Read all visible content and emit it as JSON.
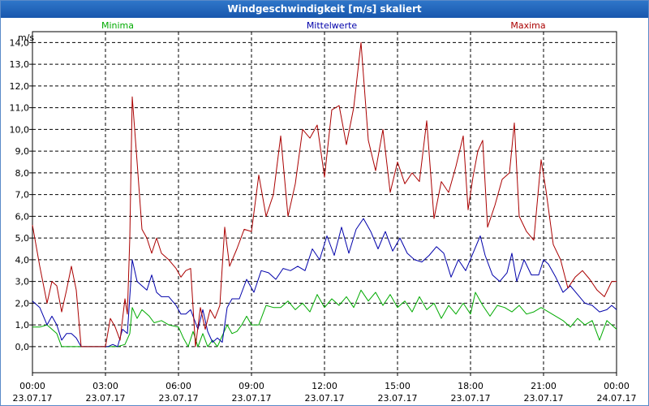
{
  "window": {
    "title": "Windgeschwindigkeit [m/s] skaliert"
  },
  "chart_data": {
    "type": "line",
    "title": "Windgeschwindigkeit [m/s] skaliert",
    "ylabel": "m/s",
    "ylim": [
      -1.2,
      14.5
    ],
    "xlim": [
      0,
      24
    ],
    "y_ticks": [
      0,
      1,
      2,
      3,
      4,
      5,
      6,
      7,
      8,
      9,
      10,
      11,
      12,
      13,
      14
    ],
    "y_tick_labels": [
      "0,0",
      "1,0",
      "2,0",
      "3,0",
      "4,0",
      "5,0",
      "6,0",
      "7,0",
      "8,0",
      "9,0",
      "10,0",
      "11,0",
      "12,0",
      "13,0",
      "14,0"
    ],
    "x_ticks": [
      {
        "hour": 0,
        "time": "00:00",
        "date": "23.07.17"
      },
      {
        "hour": 3,
        "time": "03:00",
        "date": "23.07.17"
      },
      {
        "hour": 6,
        "time": "06:00",
        "date": "23.07.17"
      },
      {
        "hour": 9,
        "time": "09:00",
        "date": "23.07.17"
      },
      {
        "hour": 12,
        "time": "12:00",
        "date": "23.07.17"
      },
      {
        "hour": 15,
        "time": "15:00",
        "date": "23.07.17"
      },
      {
        "hour": 18,
        "time": "18:00",
        "date": "23.07.17"
      },
      {
        "hour": 21,
        "time": "21:00",
        "date": "23.07.17"
      },
      {
        "hour": 24,
        "time": "00:00",
        "date": "24.07.17"
      }
    ],
    "series": [
      {
        "name": "Minima",
        "color": "#00aa00",
        "legend_position": "top-left",
        "points": [
          [
            0,
            0.9
          ],
          [
            0.3,
            0.9
          ],
          [
            0.6,
            1.0
          ],
          [
            1.0,
            0.6
          ],
          [
            1.2,
            0.0
          ],
          [
            1.6,
            0.0
          ],
          [
            2.0,
            0.0
          ],
          [
            2.4,
            0.0
          ],
          [
            2.8,
            0.0
          ],
          [
            3.2,
            0.0
          ],
          [
            3.5,
            0.0
          ],
          [
            3.8,
            0.1
          ],
          [
            4.0,
            0.6
          ],
          [
            4.1,
            1.8
          ],
          [
            4.3,
            1.3
          ],
          [
            4.5,
            1.7
          ],
          [
            4.8,
            1.4
          ],
          [
            5.0,
            1.1
          ],
          [
            5.3,
            1.2
          ],
          [
            5.6,
            1.0
          ],
          [
            6.0,
            0.9
          ],
          [
            6.2,
            0.4
          ],
          [
            6.4,
            0.0
          ],
          [
            6.6,
            0.7
          ],
          [
            6.8,
            0.0
          ],
          [
            7.0,
            0.6
          ],
          [
            7.2,
            0.0
          ],
          [
            7.4,
            0.3
          ],
          [
            7.6,
            0.0
          ],
          [
            7.8,
            0.5
          ],
          [
            8.0,
            1.0
          ],
          [
            8.2,
            0.6
          ],
          [
            8.4,
            0.7
          ],
          [
            8.6,
            1.0
          ],
          [
            8.8,
            1.4
          ],
          [
            9.0,
            1.0
          ],
          [
            9.3,
            1.0
          ],
          [
            9.6,
            1.9
          ],
          [
            9.9,
            1.8
          ],
          [
            10.2,
            1.8
          ],
          [
            10.5,
            2.1
          ],
          [
            10.8,
            1.7
          ],
          [
            11.1,
            2.0
          ],
          [
            11.4,
            1.6
          ],
          [
            11.7,
            2.4
          ],
          [
            12.0,
            1.8
          ],
          [
            12.3,
            2.2
          ],
          [
            12.6,
            1.9
          ],
          [
            12.9,
            2.3
          ],
          [
            13.2,
            1.8
          ],
          [
            13.5,
            2.6
          ],
          [
            13.8,
            2.1
          ],
          [
            14.1,
            2.5
          ],
          [
            14.4,
            1.9
          ],
          [
            14.7,
            2.4
          ],
          [
            15.0,
            1.8
          ],
          [
            15.3,
            2.1
          ],
          [
            15.6,
            1.6
          ],
          [
            15.9,
            2.3
          ],
          [
            16.2,
            1.7
          ],
          [
            16.5,
            2.0
          ],
          [
            16.8,
            1.3
          ],
          [
            17.1,
            1.9
          ],
          [
            17.4,
            1.5
          ],
          [
            17.7,
            2.0
          ],
          [
            18.0,
            1.5
          ],
          [
            18.2,
            2.5
          ],
          [
            18.5,
            1.9
          ],
          [
            18.8,
            1.4
          ],
          [
            19.1,
            1.9
          ],
          [
            19.4,
            1.8
          ],
          [
            19.7,
            1.6
          ],
          [
            20.0,
            1.9
          ],
          [
            20.3,
            1.5
          ],
          [
            20.6,
            1.6
          ],
          [
            20.9,
            1.8
          ],
          [
            21.2,
            1.6
          ],
          [
            21.5,
            1.4
          ],
          [
            21.8,
            1.2
          ],
          [
            22.1,
            0.9
          ],
          [
            22.4,
            1.3
          ],
          [
            22.7,
            1.0
          ],
          [
            23.0,
            1.2
          ],
          [
            23.3,
            0.3
          ],
          [
            23.6,
            1.2
          ],
          [
            24.0,
            0.8
          ]
        ]
      },
      {
        "name": "Mittelwerte",
        "color": "#0000aa",
        "legend_position": "top-center",
        "points": [
          [
            0,
            2.1
          ],
          [
            0.3,
            1.8
          ],
          [
            0.6,
            1.0
          ],
          [
            0.8,
            1.4
          ],
          [
            1.0,
            1.0
          ],
          [
            1.2,
            0.3
          ],
          [
            1.4,
            0.6
          ],
          [
            1.6,
            0.6
          ],
          [
            1.8,
            0.4
          ],
          [
            2.0,
            0.0
          ],
          [
            2.4,
            0.0
          ],
          [
            2.8,
            0.0
          ],
          [
            3.1,
            0.0
          ],
          [
            3.3,
            0.1
          ],
          [
            3.5,
            0.0
          ],
          [
            3.7,
            0.8
          ],
          [
            3.9,
            0.6
          ],
          [
            4.1,
            4.0
          ],
          [
            4.3,
            3.0
          ],
          [
            4.5,
            2.8
          ],
          [
            4.7,
            2.6
          ],
          [
            4.9,
            3.3
          ],
          [
            5.1,
            2.5
          ],
          [
            5.3,
            2.3
          ],
          [
            5.6,
            2.3
          ],
          [
            5.9,
            1.9
          ],
          [
            6.1,
            1.5
          ],
          [
            6.3,
            1.5
          ],
          [
            6.5,
            1.7
          ],
          [
            6.8,
            0.8
          ],
          [
            7.0,
            1.7
          ],
          [
            7.2,
            0.7
          ],
          [
            7.4,
            0.2
          ],
          [
            7.6,
            0.4
          ],
          [
            7.8,
            0.2
          ],
          [
            8.0,
            1.8
          ],
          [
            8.2,
            2.2
          ],
          [
            8.5,
            2.2
          ],
          [
            8.8,
            3.1
          ],
          [
            9.1,
            2.5
          ],
          [
            9.4,
            3.5
          ],
          [
            9.7,
            3.4
          ],
          [
            10.0,
            3.1
          ],
          [
            10.3,
            3.6
          ],
          [
            10.6,
            3.5
          ],
          [
            10.9,
            3.7
          ],
          [
            11.2,
            3.5
          ],
          [
            11.5,
            4.5
          ],
          [
            11.8,
            4.0
          ],
          [
            12.1,
            5.1
          ],
          [
            12.4,
            4.2
          ],
          [
            12.7,
            5.5
          ],
          [
            13.0,
            4.3
          ],
          [
            13.3,
            5.4
          ],
          [
            13.6,
            5.9
          ],
          [
            13.9,
            5.3
          ],
          [
            14.2,
            4.5
          ],
          [
            14.5,
            5.3
          ],
          [
            14.8,
            4.4
          ],
          [
            15.1,
            5.0
          ],
          [
            15.4,
            4.3
          ],
          [
            15.7,
            4.0
          ],
          [
            16.0,
            3.9
          ],
          [
            16.3,
            4.2
          ],
          [
            16.6,
            4.6
          ],
          [
            16.9,
            4.3
          ],
          [
            17.2,
            3.2
          ],
          [
            17.5,
            4.0
          ],
          [
            17.8,
            3.5
          ],
          [
            18.1,
            4.3
          ],
          [
            18.4,
            5.1
          ],
          [
            18.6,
            4.2
          ],
          [
            18.9,
            3.3
          ],
          [
            19.2,
            3.0
          ],
          [
            19.5,
            3.4
          ],
          [
            19.7,
            4.3
          ],
          [
            19.9,
            3.0
          ],
          [
            20.2,
            4.0
          ],
          [
            20.5,
            3.3
          ],
          [
            20.8,
            3.3
          ],
          [
            21.0,
            4.0
          ],
          [
            21.2,
            3.8
          ],
          [
            21.5,
            3.2
          ],
          [
            21.8,
            2.5
          ],
          [
            22.1,
            2.8
          ],
          [
            22.4,
            2.4
          ],
          [
            22.7,
            2.0
          ],
          [
            23.0,
            1.9
          ],
          [
            23.3,
            1.6
          ],
          [
            23.6,
            1.7
          ],
          [
            23.8,
            1.9
          ],
          [
            24.0,
            1.7
          ]
        ]
      },
      {
        "name": "Maxima",
        "color": "#aa0000",
        "legend_position": "top-right",
        "points": [
          [
            0,
            5.6
          ],
          [
            0.3,
            3.7
          ],
          [
            0.6,
            2.0
          ],
          [
            0.8,
            3.0
          ],
          [
            1.0,
            2.8
          ],
          [
            1.2,
            1.6
          ],
          [
            1.4,
            2.6
          ],
          [
            1.6,
            3.7
          ],
          [
            1.8,
            2.6
          ],
          [
            2.0,
            0.0
          ],
          [
            2.4,
            0.0
          ],
          [
            2.8,
            0.0
          ],
          [
            3.0,
            0.0
          ],
          [
            3.2,
            1.3
          ],
          [
            3.4,
            0.9
          ],
          [
            3.6,
            0.3
          ],
          [
            3.8,
            2.2
          ],
          [
            3.9,
            1.5
          ],
          [
            4.0,
            5.0
          ],
          [
            4.1,
            11.5
          ],
          [
            4.3,
            8.5
          ],
          [
            4.5,
            5.4
          ],
          [
            4.7,
            5.0
          ],
          [
            4.9,
            4.3
          ],
          [
            5.1,
            5.0
          ],
          [
            5.3,
            4.3
          ],
          [
            5.6,
            4.0
          ],
          [
            5.9,
            3.6
          ],
          [
            6.1,
            3.2
          ],
          [
            6.3,
            3.5
          ],
          [
            6.5,
            3.6
          ],
          [
            6.7,
            0.0
          ],
          [
            6.9,
            1.8
          ],
          [
            7.1,
            0.8
          ],
          [
            7.3,
            1.7
          ],
          [
            7.5,
            1.3
          ],
          [
            7.7,
            1.9
          ],
          [
            7.9,
            5.5
          ],
          [
            8.1,
            3.7
          ],
          [
            8.4,
            4.5
          ],
          [
            8.7,
            5.4
          ],
          [
            9.0,
            5.3
          ],
          [
            9.3,
            7.9
          ],
          [
            9.6,
            6.0
          ],
          [
            9.9,
            7.0
          ],
          [
            10.2,
            9.7
          ],
          [
            10.5,
            6.0
          ],
          [
            10.8,
            7.5
          ],
          [
            11.1,
            10.0
          ],
          [
            11.4,
            9.6
          ],
          [
            11.7,
            10.2
          ],
          [
            12.0,
            7.8
          ],
          [
            12.3,
            10.9
          ],
          [
            12.6,
            11.1
          ],
          [
            12.9,
            9.3
          ],
          [
            13.2,
            11.0
          ],
          [
            13.5,
            14.0
          ],
          [
            13.8,
            9.5
          ],
          [
            14.1,
            8.1
          ],
          [
            14.4,
            10.0
          ],
          [
            14.7,
            7.1
          ],
          [
            15.0,
            8.5
          ],
          [
            15.3,
            7.5
          ],
          [
            15.6,
            8.0
          ],
          [
            15.9,
            7.6
          ],
          [
            16.2,
            10.4
          ],
          [
            16.5,
            5.9
          ],
          [
            16.8,
            7.6
          ],
          [
            17.1,
            7.1
          ],
          [
            17.4,
            8.3
          ],
          [
            17.7,
            9.7
          ],
          [
            17.9,
            6.3
          ],
          [
            18.1,
            7.8
          ],
          [
            18.3,
            9.0
          ],
          [
            18.5,
            9.5
          ],
          [
            18.7,
            5.5
          ],
          [
            19.0,
            6.5
          ],
          [
            19.3,
            7.7
          ],
          [
            19.6,
            8.0
          ],
          [
            19.8,
            10.3
          ],
          [
            20.0,
            6.0
          ],
          [
            20.3,
            5.3
          ],
          [
            20.6,
            4.9
          ],
          [
            20.9,
            8.6
          ],
          [
            21.1,
            7.2
          ],
          [
            21.4,
            4.7
          ],
          [
            21.7,
            4.0
          ],
          [
            22.0,
            2.7
          ],
          [
            22.3,
            3.2
          ],
          [
            22.6,
            3.5
          ],
          [
            22.9,
            3.1
          ],
          [
            23.2,
            2.6
          ],
          [
            23.5,
            2.3
          ],
          [
            23.8,
            3.0
          ],
          [
            24.0,
            3.0
          ]
        ]
      }
    ]
  }
}
